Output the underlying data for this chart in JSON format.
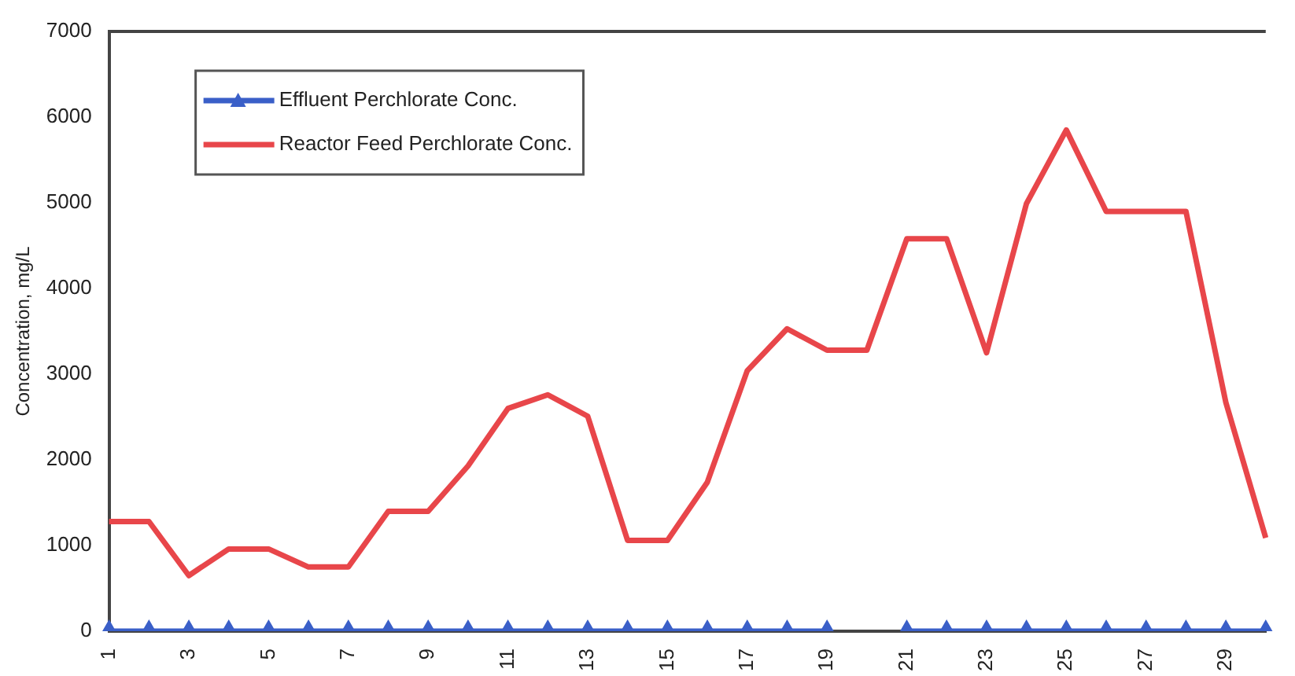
{
  "chart_data": {
    "type": "line",
    "ylabel": "Concentration, mg/L",
    "categories": [
      "1",
      null,
      "3",
      null,
      "5",
      null,
      "7",
      null,
      "9",
      null,
      "11",
      null,
      "13",
      null,
      "15",
      null,
      "17",
      null,
      "19",
      null,
      "21",
      null,
      "23",
      null,
      "25",
      null,
      "27",
      null,
      "29",
      null
    ],
    "series": [
      {
        "name": "Effluent Perchlorate Conc.",
        "color": "#3a5fc8",
        "marker": "triangle",
        "values": [
          0,
          0,
          0,
          0,
          0,
          0,
          0,
          0,
          0,
          0,
          0,
          0,
          0,
          0,
          0,
          0,
          0,
          0,
          0,
          null,
          0,
          0,
          0,
          0,
          0,
          0,
          0,
          0,
          0,
          0
        ]
      },
      {
        "name": "Reactor Feed Perchlorate Conc.",
        "color": "#e8464a",
        "marker": "none",
        "values": [
          1280,
          1280,
          650,
          960,
          960,
          750,
          750,
          1400,
          1400,
          1930,
          2600,
          2760,
          2510,
          1060,
          1060,
          1740,
          3040,
          3530,
          3280,
          3280,
          4580,
          4580,
          3250,
          4990,
          5850,
          4900,
          4900,
          4900,
          2670,
          1090
        ]
      }
    ],
    "ylim": [
      0,
      7000
    ],
    "yticks": [
      0,
      1000,
      2000,
      3000,
      4000,
      5000,
      6000,
      7000
    ],
    "grid": false,
    "legend": "top left",
    "line_style": "solid"
  }
}
